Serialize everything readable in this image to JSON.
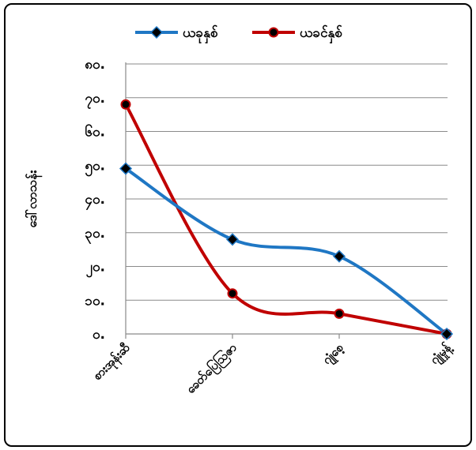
{
  "chart_data": {
    "type": "line",
    "categories": [
      "စားအုန်းဆီ",
      "ခေတ်ပြေဩဇာ",
      "ဂျုံစေ့",
      "ဂျုံမှုန့်"
    ],
    "series": [
      {
        "name": "ယခုနှစ်",
        "color": "#1f77c4",
        "marker": "diamond",
        "values": [
          49,
          28,
          23,
          0
        ]
      },
      {
        "name": "ယခင်နှစ်",
        "color": "#c00000",
        "marker": "circle",
        "values": [
          68,
          12,
          6,
          0
        ]
      }
    ],
    "yticks": [
      "၀.",
      "၁၀.",
      "၂၀.",
      "၃၀.",
      "၄၀.",
      "၅၀.",
      "၆၀.",
      "၇၀.",
      "၈၀."
    ],
    "ylim": [
      0,
      80
    ],
    "ylabel": "ဒေါ်လာသန်း",
    "xlabel": "",
    "title": "",
    "grid": true,
    "legend_position": "top"
  }
}
